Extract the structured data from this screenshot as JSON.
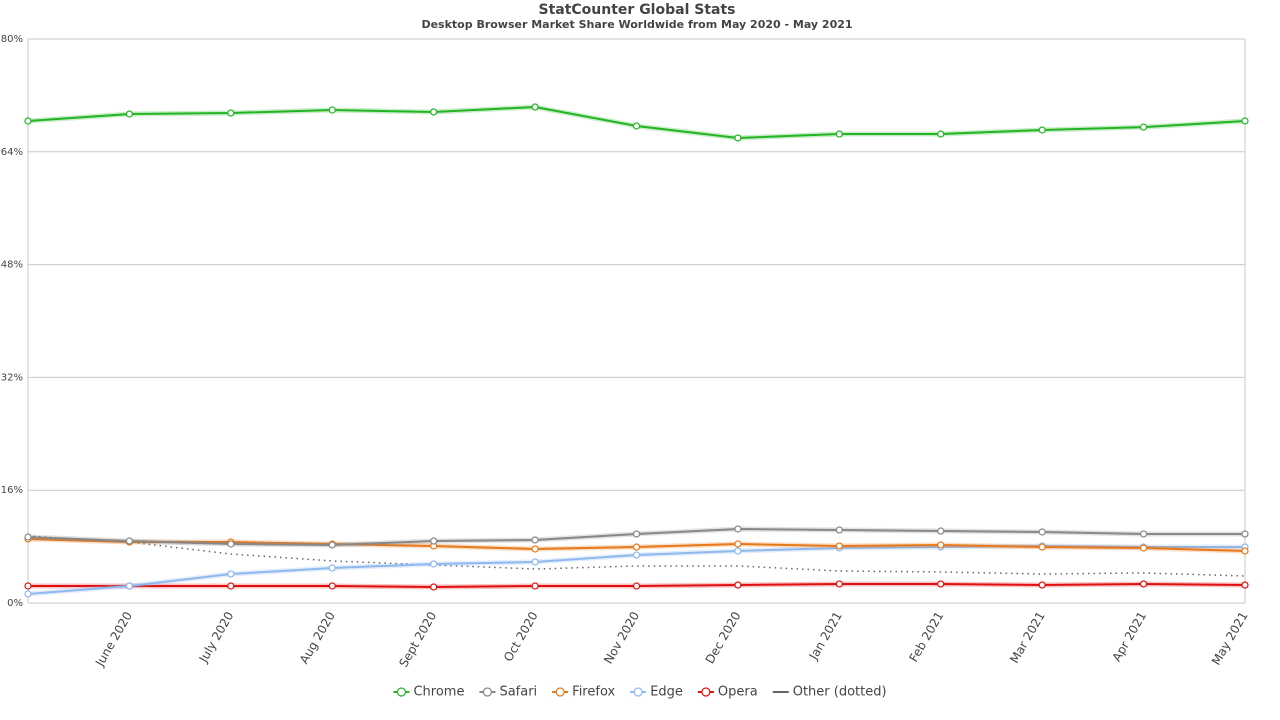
{
  "chart_data": {
    "type": "line",
    "title": "StatCounter Global Stats",
    "subtitle": "Desktop Browser Market Share Worldwide from May 2020 - May 2021",
    "categories": [
      null,
      "June 2020",
      "July 2020",
      "Aug 2020",
      "Sept 2020",
      "Oct 2020",
      "Nov 2020",
      "Dec 2020",
      "Jan 2021",
      "Feb 2021",
      "Mar 2021",
      "Apr 2021",
      "May 2021"
    ],
    "series": [
      {
        "name": "Chrome",
        "color": "#22b422",
        "values": [
          68.37,
          69.36,
          69.5,
          69.93,
          69.65,
          70.35,
          67.66,
          65.96,
          66.52,
          66.52,
          67.09,
          67.5,
          68.37
        ]
      },
      {
        "name": "Safari",
        "color": "#888888",
        "values": [
          9.36,
          8.79,
          8.37,
          8.23,
          8.79,
          8.94,
          9.79,
          10.5,
          10.35,
          10.21,
          10.07,
          9.79,
          9.79
        ]
      },
      {
        "name": "Firefox",
        "color": "#e8791b",
        "values": [
          9.08,
          8.65,
          8.65,
          8.37,
          8.09,
          7.66,
          7.94,
          8.37,
          8.09,
          8.23,
          7.94,
          7.8,
          7.38
        ]
      },
      {
        "name": "Edge",
        "color": "#8fb9ee",
        "values": [
          1.28,
          2.41,
          4.11,
          4.96,
          5.53,
          5.82,
          6.81,
          7.38,
          7.8,
          7.94,
          8.09,
          7.94,
          7.94
        ]
      },
      {
        "name": "Opera",
        "color": "#e01010",
        "values": [
          2.41,
          2.41,
          2.41,
          2.41,
          2.27,
          2.41,
          2.41,
          2.55,
          2.7,
          2.7,
          2.55,
          2.7,
          2.55
        ]
      },
      {
        "name": "Other (dotted)",
        "color": "#666666",
        "dash": "dotted",
        "markers": false,
        "values": [
          9.5,
          8.65,
          6.95,
          5.96,
          5.39,
          4.82,
          5.25,
          5.25,
          4.54,
          4.4,
          4.11,
          4.26,
          3.83
        ]
      }
    ],
    "ylim": [
      0,
      80
    ],
    "yticks": [
      {
        "value": 0,
        "label": "0%"
      },
      {
        "value": 16,
        "label": "16%"
      },
      {
        "value": 32,
        "label": "32%"
      },
      {
        "value": 48,
        "label": "48%"
      },
      {
        "value": 64,
        "label": "64%"
      },
      {
        "value": 80,
        "label": "80%"
      }
    ],
    "grid": true,
    "legend": "bottom"
  }
}
